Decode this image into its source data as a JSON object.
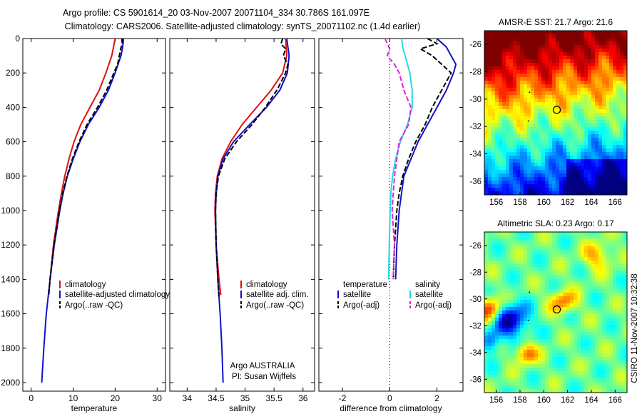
{
  "title_line1": "Argo profile: CS 5901614_20 03-Nov-2007 20071104_334 30.786S 161.097E",
  "title_line2": "Climatology: CARS2006. Satellite-adjusted climatology: synTS_20071102.nc (1.4d earlier)",
  "side_label": "CSIRO 11-Nov-2007 10:32:38",
  "colors": {
    "climatology": "#dd1111",
    "satellite": "#1111cc",
    "argo": "#000000",
    "sat_salinity": "#22dddd",
    "argo_salinity": "#dd22dd"
  },
  "chart_data": [
    {
      "type": "line",
      "name": "temperature panel",
      "xlabel": "temperature",
      "ylabel": "",
      "xlim": [
        -2,
        32
      ],
      "ylim": [
        2050,
        0
      ],
      "xticks": [
        0,
        10,
        20,
        30
      ],
      "yticks": [
        0,
        200,
        400,
        600,
        800,
        1000,
        1200,
        1400,
        1600,
        1800,
        2000
      ],
      "legend_placement": "lower-middle",
      "legend": [
        "climatology",
        "satellite-adjusted climatology",
        "Argo(..raw -QC)"
      ],
      "series": [
        {
          "name": "climatology",
          "color": "#dd1111",
          "depth": [
            0,
            50,
            100,
            200,
            300,
            400,
            500,
            600,
            700,
            800,
            900,
            1000,
            1200,
            1400,
            1490
          ],
          "values": [
            20.0,
            19.6,
            19.2,
            17.8,
            16.2,
            14.0,
            11.8,
            10.2,
            9.0,
            8.0,
            7.2,
            6.5,
            5.3,
            4.5,
            4.2
          ]
        },
        {
          "name": "satellite-adjusted climatology",
          "color": "#1111cc",
          "depth": [
            0,
            50,
            100,
            200,
            300,
            400,
            500,
            600,
            700,
            800,
            900,
            1000,
            1200,
            1400,
            1600,
            1800,
            2000
          ],
          "values": [
            22.0,
            21.8,
            21.4,
            20.0,
            18.4,
            16.2,
            13.6,
            11.6,
            10.0,
            8.6,
            7.6,
            6.8,
            5.5,
            4.5,
            3.6,
            3.0,
            2.5
          ]
        },
        {
          "name": "Argo(..raw -QC)",
          "color": "#000000",
          "depth": [
            0,
            30,
            60,
            100,
            150,
            200,
            300,
            400,
            500,
            600,
            700,
            800,
            900,
            1000,
            1200,
            1400,
            1500
          ],
          "values": [
            21.6,
            21.7,
            21.3,
            21.0,
            20.6,
            19.7,
            18.0,
            15.8,
            13.3,
            11.4,
            9.8,
            8.5,
            7.5,
            6.7,
            5.4,
            4.5,
            4.1
          ]
        }
      ]
    },
    {
      "type": "line",
      "name": "salinity panel",
      "xlabel": "salinity",
      "xlim": [
        33.7,
        36.2
      ],
      "ylim": [
        2050,
        0
      ],
      "xticks": [
        34,
        34.5,
        35,
        35.5,
        36
      ],
      "legend_placement": "lower-right",
      "legend": [
        "climatology",
        "satellite adj. clim.",
        "Argo(..raw -QC)"
      ],
      "annotation": [
        "Argo AUSTRALIA",
        "PI: Susan Wijffels"
      ],
      "series": [
        {
          "name": "climatology",
          "color": "#dd1111",
          "depth": [
            0,
            100,
            200,
            300,
            400,
            500,
            600,
            700,
            800,
            900,
            1000,
            1200,
            1400,
            1490
          ],
          "values": [
            35.7,
            35.72,
            35.65,
            35.45,
            35.2,
            34.95,
            34.75,
            34.6,
            34.52,
            34.49,
            34.48,
            34.5,
            34.55,
            34.58
          ]
        },
        {
          "name": "satellite adj. clim.",
          "color": "#1111cc",
          "depth": [
            0,
            100,
            200,
            300,
            400,
            500,
            600,
            700,
            800,
            900,
            1000,
            1200,
            1400,
            1600,
            1800,
            2000
          ],
          "values": [
            35.72,
            35.76,
            35.73,
            35.6,
            35.37,
            35.08,
            34.8,
            34.62,
            34.53,
            34.5,
            34.49,
            34.5,
            34.53,
            34.57,
            34.6,
            34.62
          ]
        },
        {
          "name": "Argo(..raw -QC)",
          "color": "#000000",
          "depth": [
            0,
            30,
            60,
            100,
            150,
            200,
            300,
            400,
            500,
            600,
            700,
            800,
            900,
            1000,
            1200,
            1400,
            1500
          ],
          "values": [
            35.65,
            35.62,
            35.7,
            35.66,
            35.74,
            35.7,
            35.55,
            35.35,
            35.12,
            34.85,
            34.65,
            34.54,
            34.5,
            34.49,
            34.5,
            34.53,
            34.55
          ]
        }
      ]
    },
    {
      "type": "line",
      "name": "difference panel",
      "xlabel": "difference from climatology",
      "xlim": [
        -3,
        3.1
      ],
      "ylim": [
        2050,
        0
      ],
      "xticks": [
        -2,
        0,
        2
      ],
      "legend_placement": "lower",
      "legend_groups": [
        "temperature",
        "salinity"
      ],
      "legend": [
        "satellite",
        "Argo(-adj)",
        "satellite",
        "Argo(-adj)"
      ],
      "series": [
        {
          "name": "temperature satellite",
          "color": "#1111cc",
          "depth": [
            0,
            50,
            100,
            150,
            200,
            300,
            400,
            500,
            600,
            700,
            800,
            900,
            1000,
            1200,
            1400
          ],
          "values": [
            2.0,
            2.4,
            2.6,
            2.8,
            2.7,
            2.4,
            2.0,
            1.6,
            1.2,
            0.9,
            0.6,
            0.5,
            0.4,
            0.3,
            0.25
          ]
        },
        {
          "name": "temperature Argo(-adj)",
          "color": "#000000",
          "depth": [
            0,
            30,
            60,
            100,
            150,
            200,
            300,
            400,
            500,
            600,
            700,
            800,
            900,
            1000,
            1200,
            1400
          ],
          "values": [
            1.6,
            2.0,
            1.3,
            1.8,
            2.2,
            2.6,
            2.2,
            1.8,
            1.5,
            1.1,
            0.8,
            0.55,
            0.4,
            0.3,
            0.2,
            0.15
          ]
        },
        {
          "name": "salinity satellite",
          "color": "#22dddd",
          "depth": [
            0,
            50,
            100,
            200,
            300,
            400,
            500,
            600,
            700,
            800,
            900,
            1000,
            1200,
            1400
          ],
          "values": [
            0.5,
            0.55,
            0.65,
            0.85,
            0.95,
            0.95,
            0.75,
            0.45,
            0.25,
            0.12,
            0.05,
            0.02,
            -0.02,
            -0.05
          ]
        },
        {
          "name": "salinity Argo(-adj)",
          "color": "#dd22dd",
          "depth": [
            0,
            30,
            60,
            100,
            150,
            200,
            300,
            400,
            500,
            600,
            700,
            800,
            900,
            1000,
            1200,
            1400
          ],
          "values": [
            -0.2,
            -0.1,
            0.0,
            -0.1,
            0.2,
            0.4,
            0.6,
            0.9,
            0.8,
            0.4,
            0.3,
            0.2,
            0.15,
            0.1,
            0.2,
            0.15
          ]
        }
      ]
    },
    {
      "type": "heatmap",
      "name": "sst map",
      "title": "AMSR-E SST: 21.7  Argo: 21.6",
      "xlim": [
        155,
        167
      ],
      "ylim": [
        -37,
        -25
      ],
      "xticks": [
        156,
        158,
        160,
        162,
        164,
        166
      ],
      "yticks": [
        -26,
        -28,
        -30,
        -32,
        -34,
        -36
      ],
      "float_position": [
        161.097,
        -30.786
      ]
    },
    {
      "type": "heatmap",
      "name": "sla map",
      "title": "Altimetric SLA: 0.23  Argo: 0.17",
      "xlim": [
        155,
        167
      ],
      "ylim": [
        -37,
        -25
      ],
      "xticks": [
        156,
        158,
        160,
        162,
        164,
        166
      ],
      "yticks": [
        -26,
        -28,
        -30,
        -32,
        -34,
        -36
      ],
      "float_position": [
        161.097,
        -30.786
      ]
    }
  ]
}
